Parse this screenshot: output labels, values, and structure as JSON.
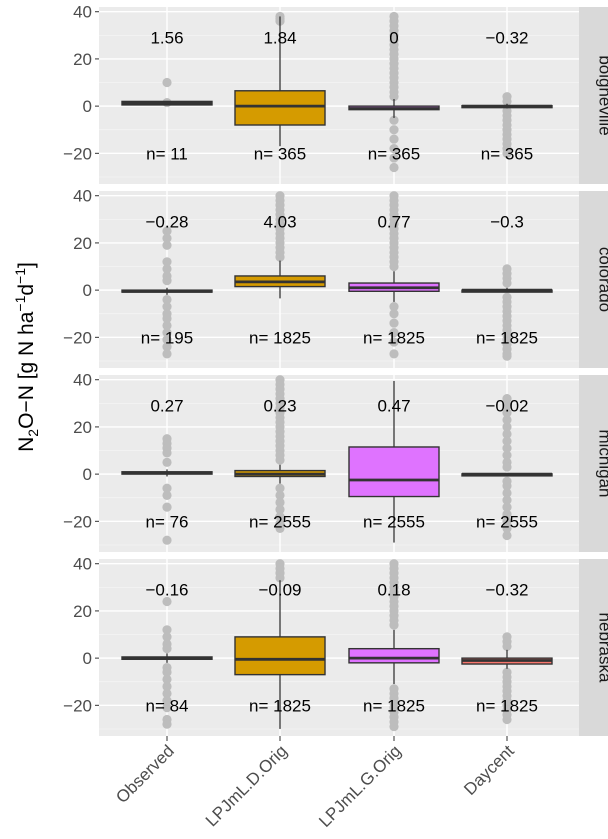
{
  "chart_data": {
    "type": "box",
    "ylabel": "N₂O−N [g N ha⁻¹d⁻¹]",
    "ylabel_parts": {
      "base": "N",
      "sub": "2",
      "mid": "O−N [g N ha",
      "sup1": "−1",
      "mid2": "d",
      "sup2": "−1",
      "end": "]"
    },
    "ylim": [
      -33,
      42
    ],
    "yticks": [
      40,
      20,
      0,
      -20
    ],
    "ytick_labels": [
      "40",
      "20",
      "0",
      "−20"
    ],
    "categories": [
      "Observed",
      "LPJmL.D.Orig",
      "LPJmL.G.Orig",
      "Daycent"
    ],
    "colors": {
      "panel_bg": "#ebebeb",
      "strip_bg": "#d9d9d9",
      "outlier": "#bdbdbd",
      "Observed": "#4d4d4d",
      "LPJmL.D.Orig": "#d59b00",
      "LPJmL.G.Orig": "#df73ff",
      "Daycent": "#f8766d"
    },
    "panels": [
      {
        "site": "boigneville",
        "boxes": [
          {
            "q1": 0.5,
            "median": 1.2,
            "q3": 2.0,
            "lower": 0.5,
            "upper": 2.0,
            "outliers": [
              10,
              1.5
            ],
            "mean_label": "1.56",
            "n_label": "n=  11"
          },
          {
            "q1": -8,
            "median": 0,
            "q3": 6.5,
            "lower": -17,
            "upper": 38,
            "outliers": [
              38,
              37,
              36
            ],
            "mean_label": "1.84",
            "n_label": "n=  365"
          },
          {
            "q1": -1.5,
            "median": -1,
            "q3": 0,
            "lower": -5,
            "upper": 3,
            "outliers": [
              38,
              36,
              34,
              32,
              30,
              28,
              26,
              24,
              22,
              20,
              18,
              16,
              14,
              12,
              10,
              8,
              6,
              4,
              -6,
              -10,
              -14,
              -18,
              -22,
              -26
            ],
            "mean_label": "0",
            "n_label": "n=  365"
          },
          {
            "q1": -0.3,
            "median": 0,
            "q3": 0.2,
            "lower": -1,
            "upper": 1,
            "outliers": [
              4,
              2,
              -2,
              -4,
              -6,
              -8,
              -10,
              -12,
              -14,
              -16,
              -18,
              -20
            ],
            "mean_label": "−0.32",
            "n_label": "n=  365"
          }
        ]
      },
      {
        "site": "colorado",
        "boxes": [
          {
            "q1": -0.8,
            "median": -0.5,
            "q3": 0,
            "lower": -2,
            "upper": 1,
            "outliers": [
              25,
              22,
              19,
              12,
              9,
              6,
              4,
              -4,
              -7,
              -10,
              -12,
              -15,
              -18,
              -21,
              -24,
              -27
            ],
            "mean_label": "−0.28",
            "n_label": "n=  195"
          },
          {
            "q1": 1.5,
            "median": 3.5,
            "q3": 6,
            "lower": -3.5,
            "upper": 12.5,
            "outliers": [
              40,
              38,
              36,
              34,
              32,
              30,
              28,
              26,
              24,
              22,
              20,
              18,
              16,
              14
            ],
            "mean_label": "4.03",
            "n_label": "n=  1825"
          },
          {
            "q1": -0.5,
            "median": 1,
            "q3": 3,
            "lower": -5,
            "upper": 8,
            "outliers": [
              40,
              38,
              36,
              34,
              32,
              30,
              28,
              26,
              24,
              22,
              20,
              18,
              16,
              14,
              12,
              10,
              -7,
              -10,
              -14,
              -18,
              -22,
              -27
            ],
            "mean_label": "0.77",
            "n_label": "n=  1825"
          },
          {
            "q1": -0.3,
            "median": 0,
            "q3": 0,
            "lower": -1,
            "upper": 1,
            "outliers": [
              9,
              7,
              5,
              3,
              -3,
              -5,
              -7,
              -9,
              -11,
              -13,
              -15,
              -17,
              -19,
              -21,
              -23,
              -25,
              -27,
              -28
            ],
            "mean_label": "−0.3",
            "n_label": "n=  1825"
          }
        ]
      },
      {
        "site": "michigan",
        "boxes": [
          {
            "q1": 0,
            "median": 0.5,
            "q3": 1,
            "lower": -1,
            "upper": 2,
            "outliers": [
              15,
              13,
              11,
              9,
              5,
              -6,
              -9,
              -14,
              -28
            ],
            "mean_label": "0.27",
            "n_label": "n=  76"
          },
          {
            "q1": -1,
            "median": 0,
            "q3": 1.5,
            "lower": -4,
            "upper": 4,
            "outliers": [
              40,
              38,
              36,
              34,
              32,
              30,
              28,
              26,
              24,
              22,
              20,
              18,
              16,
              14,
              12,
              10,
              8,
              6,
              -6,
              -9,
              -12,
              -15,
              -18,
              -21,
              -23
            ],
            "mean_label": "0.23",
            "n_label": "n=  2555"
          },
          {
            "q1": -9.5,
            "median": -2.5,
            "q3": 11.5,
            "lower": -29,
            "upper": 39.5,
            "outliers": [],
            "mean_label": "0.47",
            "n_label": "n=  2555"
          },
          {
            "q1": -0.2,
            "median": 0,
            "q3": 0.1,
            "lower": -0.5,
            "upper": 0.5,
            "outliers": [
              32,
              29,
              26,
              23,
              20,
              17,
              14,
              11,
              8,
              5,
              3,
              -3,
              -5,
              -8,
              -11,
              -14,
              -17,
              -20,
              -23,
              -26
            ],
            "mean_label": "−0.02",
            "n_label": "n=  2555"
          }
        ]
      },
      {
        "site": "nebraska",
        "boxes": [
          {
            "q1": -0.5,
            "median": 0,
            "q3": 0.5,
            "lower": -2,
            "upper": 2,
            "outliers": [
              24,
              12,
              9,
              6,
              4,
              -4,
              -6,
              -9,
              -12,
              -15,
              -18,
              -21,
              -26,
              -28
            ],
            "mean_label": "−0.16",
            "n_label": "n=  84"
          },
          {
            "q1": -7,
            "median": -0.5,
            "q3": 9,
            "lower": -30,
            "upper": 33,
            "outliers": [
              40,
              38,
              36,
              34
            ],
            "mean_label": "−0.09",
            "n_label": "n=  1825"
          },
          {
            "q1": -2,
            "median": 0,
            "q3": 4,
            "lower": -11,
            "upper": 12,
            "outliers": [
              40,
              38,
              36,
              34,
              32,
              30,
              28,
              26,
              24,
              22,
              20,
              18,
              16,
              14,
              -13,
              -15,
              -17,
              -19,
              -21,
              -23,
              -25,
              -27,
              -29
            ],
            "mean_label": "0.18",
            "n_label": "n=  1825"
          },
          {
            "q1": -2.5,
            "median": -1,
            "q3": 0,
            "lower": -4.5,
            "upper": 3.5,
            "outliers": [
              9,
              7,
              5,
              -6,
              -8,
              -10,
              -12,
              -14,
              -16,
              -18,
              -20,
              -22,
              -24,
              -26
            ],
            "mean_label": "−0.32",
            "n_label": "n=  1825"
          }
        ]
      }
    ]
  }
}
